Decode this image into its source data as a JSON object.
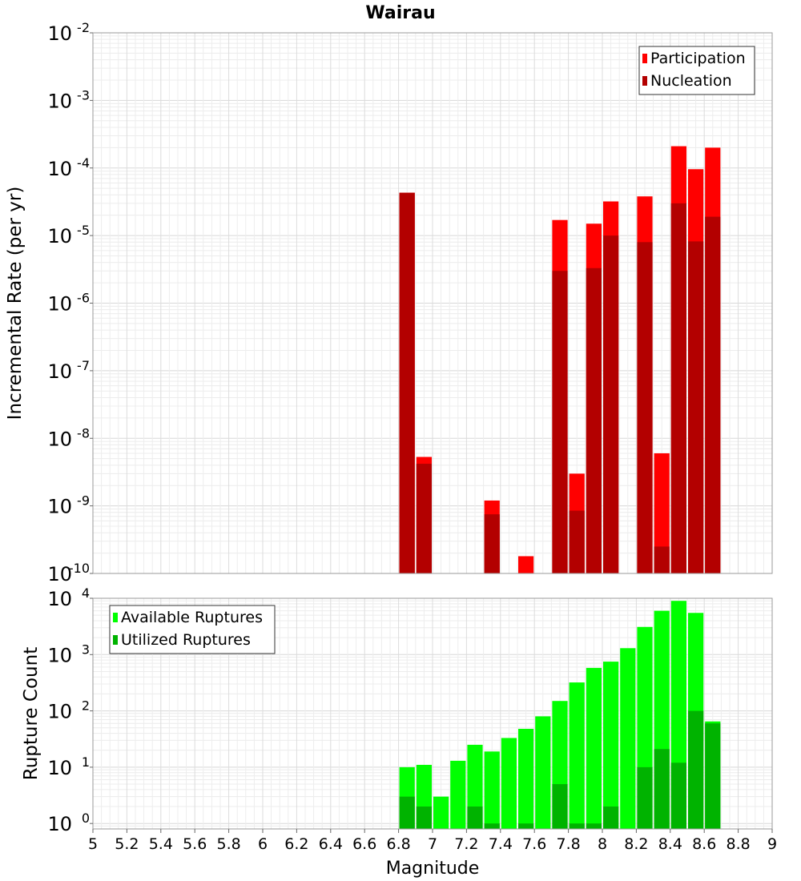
{
  "chart_data": {
    "title": "Wairau",
    "xlabel": "Magnitude",
    "x_range": [
      5,
      9
    ],
    "x_ticks": [
      "5",
      "5.2",
      "5.4",
      "5.6",
      "5.8",
      "6",
      "6.2",
      "6.4",
      "6.6",
      "6.8",
      "7",
      "7.2",
      "7.4",
      "7.6",
      "7.8",
      "8",
      "8.2",
      "8.4",
      "8.6",
      "8.8",
      "9"
    ],
    "bin_width": 0.1,
    "panels": [
      {
        "type": "bar",
        "ylabel": "Incremental Rate (per yr)",
        "y_scale": "log",
        "ylim": [
          1e-10,
          0.01
        ],
        "y_tick_exponents": [
          -10,
          -9,
          -8,
          -7,
          -6,
          -5,
          -4,
          -3,
          -2
        ],
        "grid": true,
        "legend_position": "top-right",
        "series": [
          {
            "name": "Participation",
            "color": "#ff0000",
            "x": [
              6.85,
              6.95,
              7.35,
              7.55,
              7.75,
              7.85,
              7.95,
              8.05,
              8.25,
              8.35,
              8.45,
              8.55,
              8.65
            ],
            "values": [
              4.3e-05,
              5.3e-09,
              1.2e-09,
              1.8e-10,
              1.7e-05,
              3e-09,
              1.5e-05,
              3.2e-05,
              3.8e-05,
              6e-09,
              0.00021,
              9.6e-05,
              0.0002
            ]
          },
          {
            "name": "Nucleation",
            "color": "#b30000",
            "x": [
              6.85,
              6.95,
              7.35,
              7.75,
              7.85,
              7.95,
              8.05,
              8.25,
              8.35,
              8.45,
              8.55,
              8.65
            ],
            "values": [
              4.3e-05,
              4.2e-09,
              7.5e-10,
              3e-06,
              8.5e-10,
              3.3e-06,
              1e-05,
              8e-06,
              2.5e-10,
              3e-05,
              8.2e-06,
              1.9e-05
            ]
          }
        ]
      },
      {
        "type": "bar",
        "ylabel": "Rupture Count",
        "y_scale": "log",
        "ylim": [
          0.8,
          10000
        ],
        "y_tick_exponents": [
          0,
          1,
          2,
          3,
          4
        ],
        "grid": true,
        "legend_position": "top-left",
        "series": [
          {
            "name": "Available Ruptures",
            "color": "#00ff00",
            "x": [
              6.85,
              6.95,
              7.05,
              7.15,
              7.25,
              7.35,
              7.45,
              7.55,
              7.65,
              7.75,
              7.85,
              7.95,
              8.05,
              8.15,
              8.25,
              8.35,
              8.45,
              8.55,
              8.65
            ],
            "values": [
              10,
              11,
              3,
              13,
              25,
              19,
              33,
              48,
              80,
              150,
              320,
              580,
              750,
              1300,
              3100,
              6000,
              9000,
              5500,
              65
            ]
          },
          {
            "name": "Utilized Ruptures",
            "color": "#00b300",
            "x": [
              6.85,
              6.95,
              7.25,
              7.35,
              7.55,
              7.75,
              7.85,
              7.95,
              8.05,
              8.25,
              8.35,
              8.45,
              8.55,
              8.65
            ],
            "values": [
              3,
              2,
              2,
              1,
              1,
              5,
              1,
              1,
              2,
              10,
              21,
              12,
              100,
              60
            ]
          }
        ]
      }
    ]
  }
}
